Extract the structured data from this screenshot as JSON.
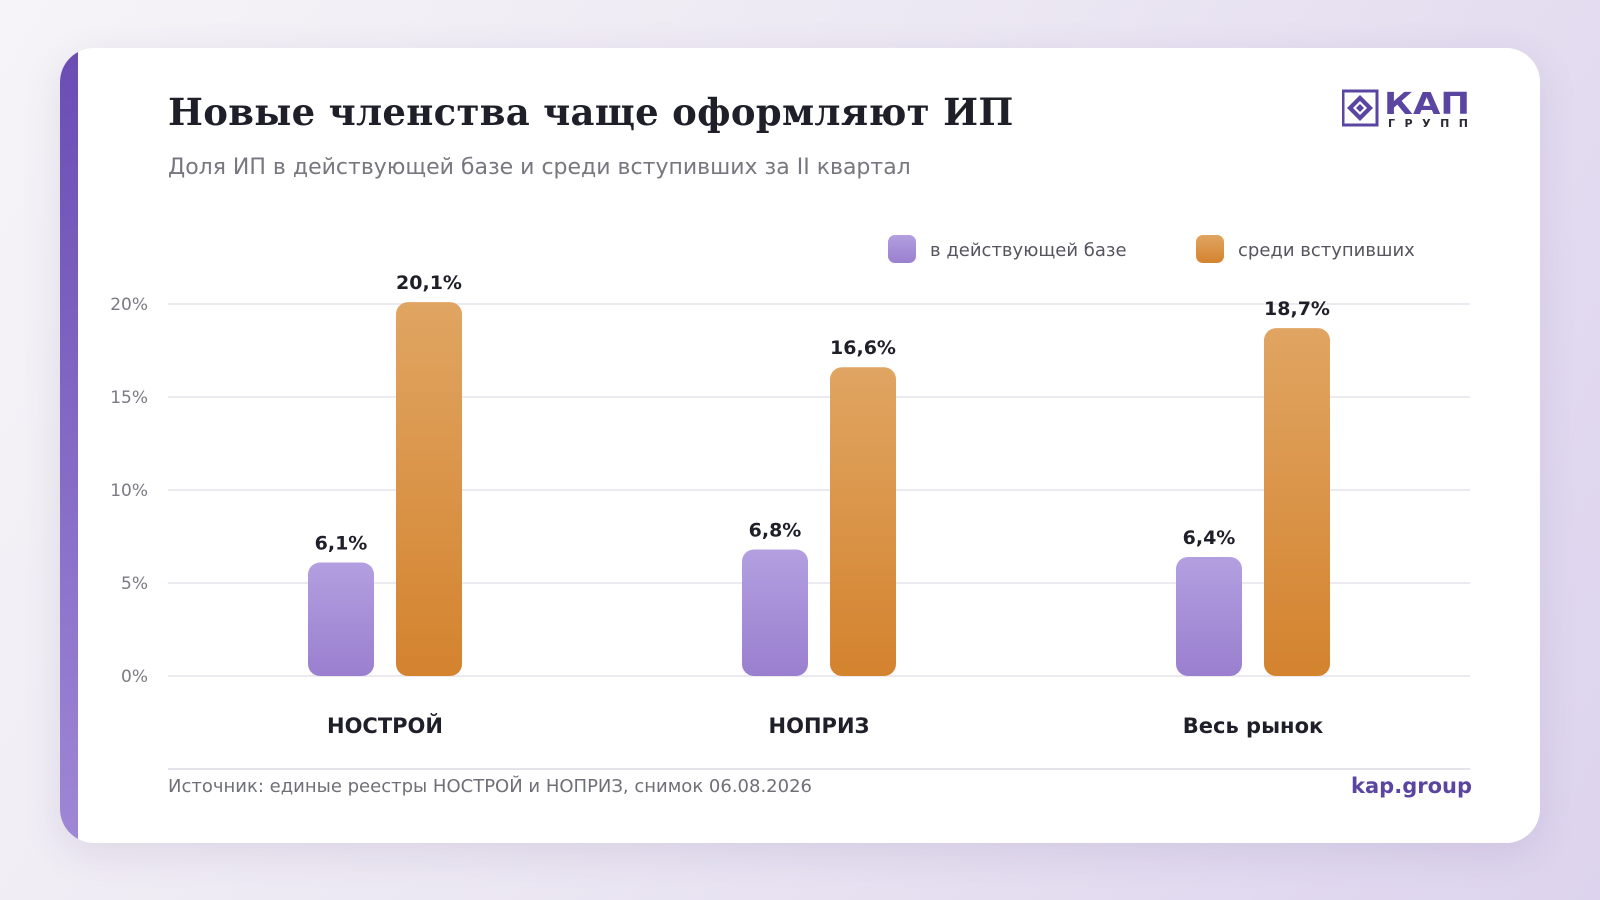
{
  "header": {
    "title": "Новые членства чаще оформляют ИП",
    "subtitle": "Доля ИП в действующей базе и среди вступивших за II квартал"
  },
  "logo": {
    "name": "КАП",
    "sub": "ГРУПП",
    "icon": "diamond-logo-icon"
  },
  "footer": {
    "source": "Источник: единые реестры НОСТРОЙ и НОПРИЗ, снимок 06.08.2026",
    "site": "kap.group"
  },
  "colors": {
    "accent": "#6a4cb4",
    "series1_top": "#b39fe0",
    "series1_bottom": "#9a7fcf",
    "series2_top": "#e0a562",
    "series2_bottom": "#d4832e"
  },
  "chart_data": {
    "type": "bar",
    "categories": [
      "НОСТРОЙ",
      "НОПРИЗ",
      "Весь рынок"
    ],
    "series": [
      {
        "name": "в действующей базе",
        "values": [
          6.1,
          6.8,
          6.4
        ],
        "labels": [
          "6,1%",
          "6,8%",
          "6,4%"
        ]
      },
      {
        "name": "среди вступивших",
        "values": [
          20.1,
          16.6,
          18.7
        ],
        "labels": [
          "20,1%",
          "16,6%",
          "18,7%"
        ]
      }
    ],
    "y_ticks": [
      0,
      5,
      10,
      15,
      20
    ],
    "y_tick_labels": [
      "0%",
      "5%",
      "10%",
      "15%",
      "20%"
    ],
    "ylim": [
      0,
      20
    ],
    "grid": true,
    "legend_position": "top-right"
  }
}
